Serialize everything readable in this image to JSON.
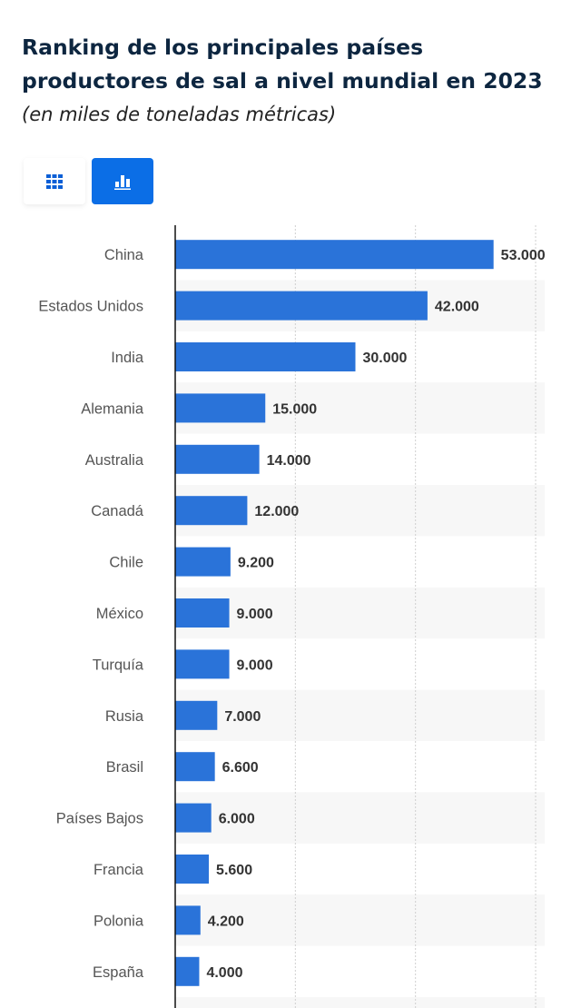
{
  "header": {
    "title": "Ranking de los principales países productores de sal a nivel mundial en 2023",
    "subtitle": "(en miles de toneladas métricas)"
  },
  "toolbar": {
    "table_icon": "grid-icon",
    "chart_icon": "bar-chart-icon",
    "active": "chart",
    "accent": "#0b6ee6"
  },
  "chart_data": {
    "type": "bar",
    "orientation": "horizontal",
    "title": "Ranking de los principales países productores de sal a nivel mundial en 2023",
    "subtitle": "(en miles de toneladas métricas)",
    "categories": [
      "China",
      "Estados Unidos",
      "India",
      "Alemania",
      "Australia",
      "Canadá",
      "Chile",
      "México",
      "Turquía",
      "Rusia",
      "Brasil",
      "Países Bajos",
      "Francia",
      "Polonia",
      "España"
    ],
    "values": [
      53000,
      42000,
      30000,
      15000,
      14000,
      12000,
      9200,
      9000,
      9000,
      7000,
      6600,
      6000,
      5600,
      4200,
      4000
    ],
    "value_labels": [
      "53.000",
      "42.000",
      "30.000",
      "15.000",
      "14.000",
      "12.000",
      "9.200",
      "9.000",
      "9.000",
      "7.000",
      "6.600",
      "6.000",
      "5.600",
      "4.200",
      "4.000"
    ],
    "xlim": [
      0,
      60000
    ],
    "gridlines": [
      20000,
      40000,
      60000
    ],
    "grid": true,
    "bar_color": "#2a73d9",
    "xlabel": "",
    "ylabel": ""
  }
}
